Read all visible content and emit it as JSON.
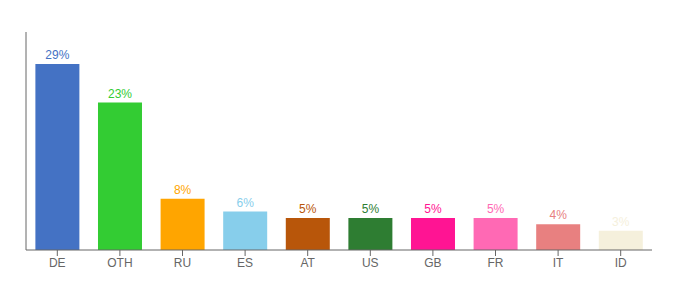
{
  "chart_data": {
    "type": "bar",
    "categories": [
      "DE",
      "OTH",
      "RU",
      "ES",
      "AT",
      "US",
      "GB",
      "FR",
      "IT",
      "ID"
    ],
    "values": [
      29,
      23,
      8,
      6,
      5,
      5,
      5,
      5,
      4,
      3
    ],
    "value_labels": [
      "29%",
      "23%",
      "8%",
      "6%",
      "5%",
      "5%",
      "5%",
      "5%",
      "4%",
      "3%"
    ],
    "colors": [
      "#4472C4",
      "#33CC33",
      "#FFA500",
      "#87CEEB",
      "#B8560A",
      "#2E7D32",
      "#FF1493",
      "#FF69B4",
      "#E88080",
      "#F5F0DC"
    ],
    "ylim": [
      0,
      34
    ],
    "data_labels": true,
    "tick_labels": "x",
    "grid": false
  }
}
